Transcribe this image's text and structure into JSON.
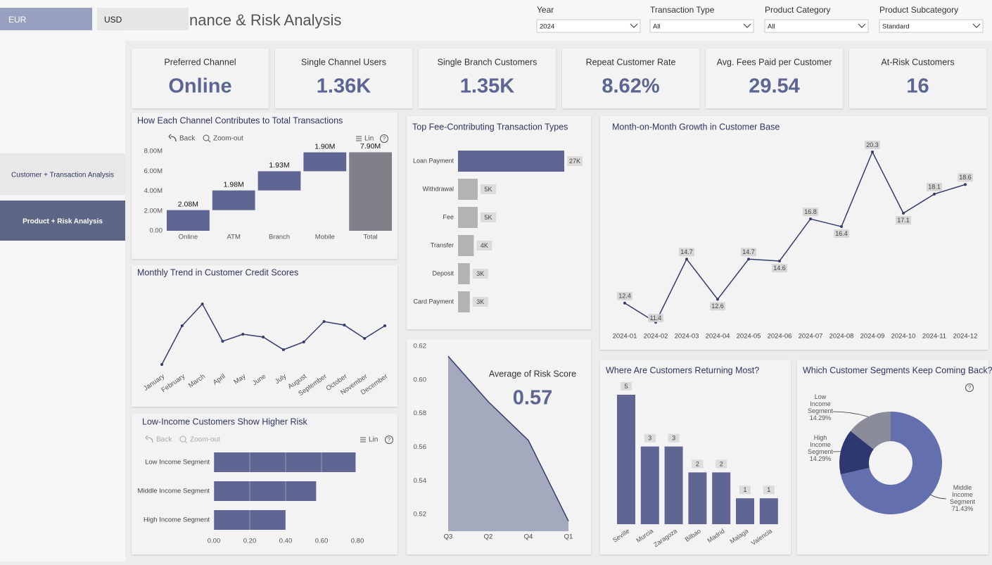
{
  "header": {
    "currency": [
      "EUR",
      "USD"
    ],
    "title": "nance & Risk Analysis"
  },
  "filters": [
    {
      "label": "Year",
      "value": "2024"
    },
    {
      "label": "Transaction Type",
      "value": "All"
    },
    {
      "label": "Product Category",
      "value": "All"
    },
    {
      "label": "Product Subcategory",
      "value": "Standard"
    }
  ],
  "nav": [
    "Customer + Transaction Analysis",
    "Product + Risk Analysis"
  ],
  "kpis": [
    {
      "label": "Preferred Channel",
      "value": "Online"
    },
    {
      "label": "Single Channel Users",
      "value": "1.36K"
    },
    {
      "label": "Single Branch Customers",
      "value": "1.35K"
    },
    {
      "label": "Repeat Customer Rate",
      "value": "8.62%"
    },
    {
      "label": "Avg. Fees Paid per Customer",
      "value": "29.54"
    },
    {
      "label": "At-Risk Customers",
      "value": "16"
    }
  ],
  "chart_data": [
    {
      "type": "waterfall",
      "title": "How Each Channel Contributes to Total Transactions",
      "toolbar": [
        "Back",
        "Zoom-out",
        "Lin"
      ],
      "help": "?",
      "categories": [
        "Online",
        "ATM",
        "Branch",
        "Mobile",
        "Total"
      ],
      "values": [
        2080000,
        1980000,
        1930000,
        1900000,
        7900000
      ],
      "value_labels": [
        "2.08M",
        "1.98M",
        "1.93M",
        "1.90M",
        "7.90M"
      ],
      "color": "#5f6694",
      "total_color": "#808088",
      "ylim": [
        0,
        8000000
      ],
      "yticks": [
        {
          "value": 0,
          "label": "0.00"
        },
        {
          "value": 2000000,
          "label": "2.00M"
        },
        {
          "value": 4000000,
          "label": "4.00M"
        },
        {
          "value": 6000000,
          "label": "6.00M"
        },
        {
          "value": 8000000,
          "label": "8.00M"
        }
      ]
    },
    {
      "type": "hbar",
      "title": "Top Fee-Contributing Transaction Types",
      "categories": [
        "Loan Payment",
        "Withdrawal",
        "Fee",
        "Transfer",
        "Deposit",
        "Card Payment"
      ],
      "values": [
        27000,
        5000,
        5000,
        4000,
        3000,
        3000
      ],
      "value_labels": [
        "27K",
        "5K",
        "5K",
        "4K",
        "3K",
        "3K"
      ],
      "colors": [
        "#5f6694",
        "#b3b3b3",
        "#b3b3b3",
        "#b3b3b3",
        "#b3b3b3",
        "#b3b3b3"
      ]
    },
    {
      "type": "line",
      "title": "Month-on-Month Growth in Customer Base",
      "categories": [
        "2024-01",
        "2024-02",
        "2024-03",
        "2024-04",
        "2024-05",
        "2024-06",
        "2024-07",
        "2024-08",
        "2024-09",
        "2024-10",
        "2024-11",
        "2024-12"
      ],
      "values": [
        12.4,
        11.4,
        14.7,
        12.6,
        14.7,
        14.6,
        16.8,
        16.4,
        20.3,
        17.1,
        18.1,
        18.6
      ],
      "color": "#353c6b",
      "data_labels": true
    },
    {
      "type": "line",
      "title": "Monthly Trend in Customer Credit Scores",
      "categories": [
        "January",
        "February",
        "March",
        "April",
        "May",
        "June",
        "July",
        "August",
        "September",
        "October",
        "November",
        "December"
      ],
      "values": [
        657,
        684.5,
        700,
        673.5,
        678.5,
        676.5,
        667.5,
        673,
        687.5,
        685,
        675.5,
        684.5
      ],
      "color": "#353c6b",
      "data_labels": false
    },
    {
      "type": "area",
      "card": {
        "label": "Average of Risk Score",
        "value": "0.57"
      },
      "categories": [
        "Q3",
        "Q2",
        "Q4",
        "Q1"
      ],
      "values": [
        0.614,
        0.587,
        0.564,
        0.516
      ],
      "color": "#353c6b",
      "fill": "#a5a9be",
      "ylim": [
        0.51,
        0.625
      ],
      "yticks": [
        0.52,
        0.54,
        0.56,
        0.58,
        {
          "value": 0.6,
          "label": "0.60"
        },
        0.62
      ]
    },
    {
      "type": "hbar",
      "title": "Low-Income Customers Show Higher Risk",
      "toolbar": [
        "Back",
        "Zoom-out",
        "Lin"
      ],
      "help": "?",
      "categories": [
        "Low Income Segment",
        "Middle Income Segment",
        "High Income Segment"
      ],
      "values": [
        0.79,
        0.57,
        0.4
      ],
      "color": "#5f6694",
      "xlim": [
        0,
        1
      ],
      "xticks": [
        {
          "value": 0,
          "label": "0.00"
        },
        {
          "value": 0.2,
          "label": "0.20"
        },
        {
          "value": 0.4,
          "label": "0.40"
        },
        {
          "value": 0.6,
          "label": "0.60"
        },
        {
          "value": 0.8,
          "label": "0.80"
        }
      ],
      "grid": true
    },
    {
      "type": "bar",
      "title": "Where Are Customers Returning Most?",
      "categories": [
        "Seville",
        "Murcia",
        "Zaragoza",
        "Bilbao",
        "Madrid",
        "Malaga",
        "Valencia"
      ],
      "values": [
        5,
        3,
        3,
        2,
        2,
        1,
        1
      ],
      "color": "#5f6694"
    },
    {
      "type": "donut",
      "title": "Which Customer Segments Keep Coming Back?",
      "help": "?",
      "categories": [
        "Middle Income Segment",
        "High Income Segment",
        "Low Income Segment"
      ],
      "values": [
        71.43,
        14.29,
        14.29
      ],
      "value_labels": [
        "71.43%",
        "14.29%",
        "14.29%"
      ],
      "colors": [
        "#6470ad",
        "#2e3770",
        "#8a8c99"
      ]
    }
  ]
}
